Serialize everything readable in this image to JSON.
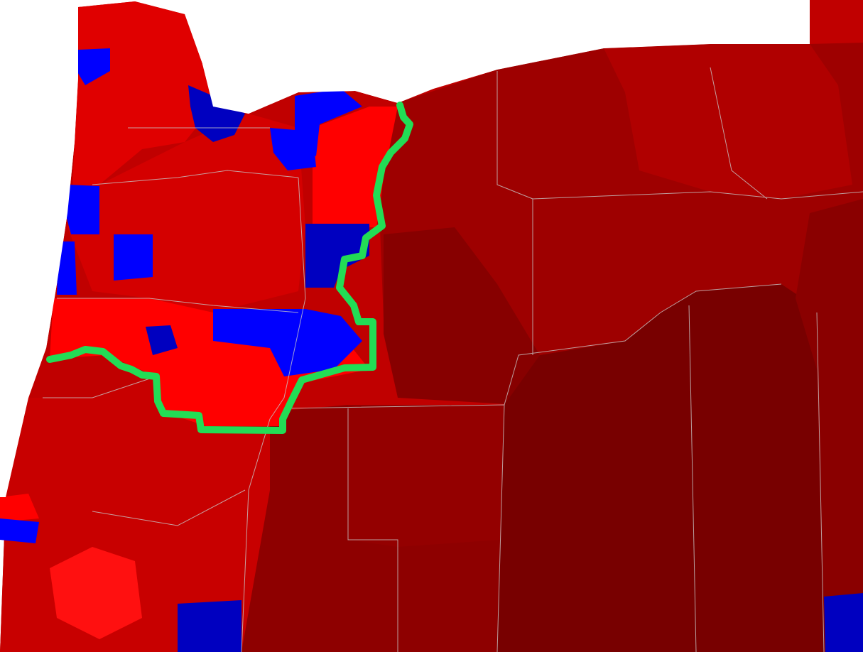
{
  "map": {
    "colors": {
      "background": "#ffffff",
      "red_light": "#ff0000",
      "red_mid": "#d40000",
      "red_base": "#c00000",
      "red_dark": "#9e0000",
      "red_darker": "#870000",
      "red_darkest": "#780000",
      "blue": "#0000ff",
      "blue_dark": "#0000c0",
      "boundary_line": "#c8c8c8",
      "route_line": "#22dd55"
    }
  }
}
